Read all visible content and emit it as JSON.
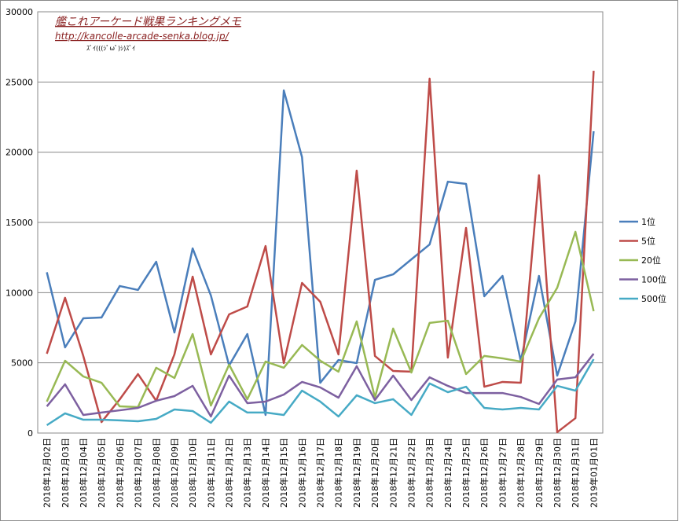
{
  "chart_data": {
    "type": "line",
    "annotations": [
      "艦これアーケード戦果ランキングメモ",
      "http://kancolle-arcade-senka.blog.jp/",
      "ｽﾞｲ(((ｼﾟωﾟ)ｼ)ｽﾞｲ"
    ],
    "categories": [
      "2018年12月02日",
      "2018年12月03日",
      "2018年12月04日",
      "2018年12月05日",
      "2018年12月06日",
      "2018年12月07日",
      "2018年12月08日",
      "2018年12月09日",
      "2018年12月10日",
      "2018年12月11日",
      "2018年12月12日",
      "2018年12月13日",
      "2018年12月14日",
      "2018年12月15日",
      "2018年12月16日",
      "2018年12月17日",
      "2018年12月18日",
      "2018年12月19日",
      "2018年12月20日",
      "2018年12月21日",
      "2018年12月22日",
      "2018年12月23日",
      "2018年12月24日",
      "2018年12月25日",
      "2018年12月26日",
      "2018年12月27日",
      "2018年12月28日",
      "2018年12月29日",
      "2018年12月30日",
      "2018年12月31日",
      "2019年01月01日"
    ],
    "series": [
      {
        "name": "1位",
        "color": "#4a7ebb",
        "values": [
          11450,
          6100,
          8170,
          8230,
          10470,
          10190,
          12200,
          7160,
          13150,
          9800,
          4810,
          7050,
          1290,
          24400,
          19650,
          3580,
          5200,
          4980,
          10910,
          11300,
          12370,
          13430,
          17900,
          17740,
          9740,
          11190,
          5150,
          11190,
          4090,
          7950,
          21490
        ]
      },
      {
        "name": "5位",
        "color": "#be4b48",
        "values": [
          5650,
          9630,
          5490,
          780,
          2400,
          4200,
          2300,
          5600,
          11140,
          5600,
          8450,
          9010,
          13320,
          4980,
          10690,
          9350,
          5600,
          18690,
          5490,
          4420,
          4370,
          25240,
          5370,
          14610,
          3300,
          3640,
          3580,
          18360,
          60,
          1060,
          25800
        ]
      },
      {
        "name": "20位",
        "color": "#98b954",
        "values": [
          2240,
          5150,
          4030,
          3580,
          1900,
          1850,
          4650,
          3920,
          7050,
          1960,
          4870,
          2410,
          5090,
          4650,
          6270,
          5150,
          4370,
          7950,
          2520,
          7440,
          4310,
          7840,
          8000,
          4200,
          5490,
          5320,
          5090,
          8170,
          10350,
          14330,
          8680
        ]
      },
      {
        "name": "100位",
        "color": "#7d60a0",
        "values": [
          1900,
          3470,
          1290,
          1460,
          1620,
          1790,
          2300,
          2630,
          3360,
          1180,
          4090,
          2130,
          2240,
          2740,
          3640,
          3250,
          2520,
          4760,
          2350,
          4090,
          2350,
          3970,
          3360,
          2850,
          2850,
          2850,
          2570,
          2070,
          3810,
          3970,
          5650
        ]
      },
      {
        "name": "500位",
        "color": "#46aac5",
        "values": [
          560,
          1400,
          950,
          950,
          900,
          840,
          1010,
          1680,
          1570,
          730,
          2240,
          1460,
          1460,
          1290,
          3020,
          2240,
          1180,
          2690,
          2130,
          2410,
          1290,
          3530,
          2910,
          3300,
          1790,
          1680,
          1790,
          1680,
          3360,
          3020,
          5260
        ]
      }
    ],
    "ylim": [
      0,
      30000
    ],
    "yticks": [
      0,
      5000,
      10000,
      15000,
      20000,
      25000,
      30000
    ],
    "grid": true,
    "legend": "right"
  }
}
